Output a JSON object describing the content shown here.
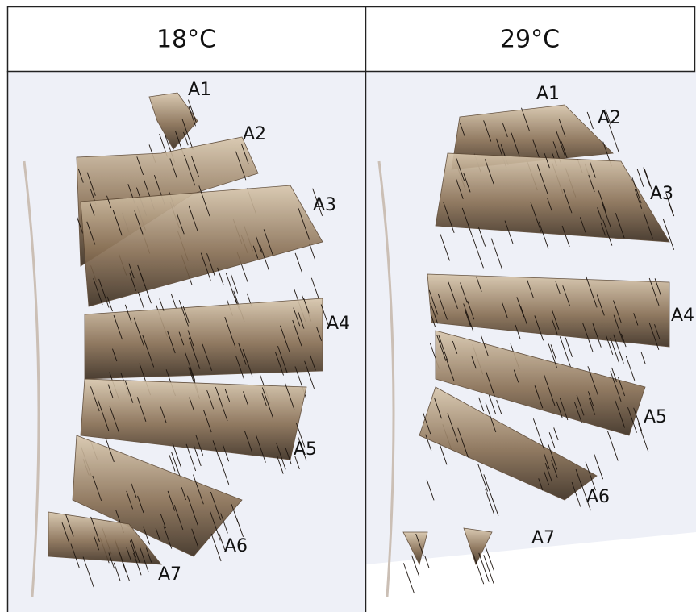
{
  "panels": [
    {
      "title": "18°C",
      "labels": [
        "A1",
        "A2",
        "A3",
        "A4",
        "A5",
        "A6",
        "A7"
      ]
    },
    {
      "title": "29°C",
      "labels": [
        "A1",
        "A2",
        "A3",
        "A4",
        "A5",
        "A6",
        "A7"
      ]
    }
  ]
}
